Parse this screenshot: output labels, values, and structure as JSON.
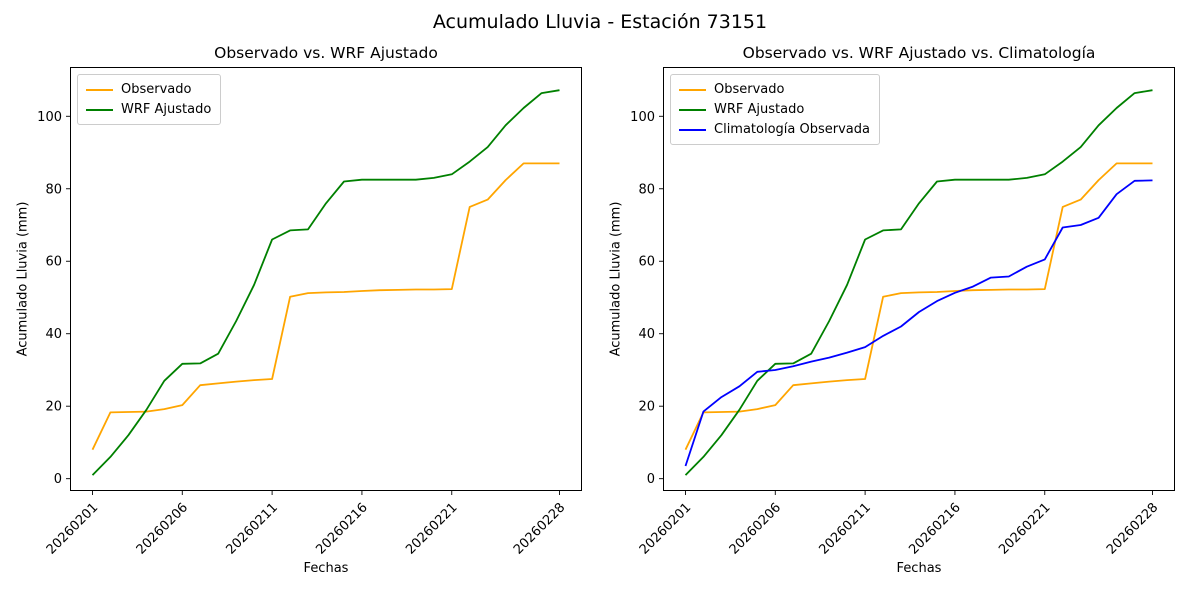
{
  "chart_data": {
    "type": "line",
    "suptitle": "Acumulado Lluvia - Estación 73151",
    "xlabel": "Fechas",
    "ylabel": "Acumulado Lluvia (mm)",
    "n_points": 27,
    "xlim": [
      -1.25,
      27.25
    ],
    "ylim": [
      -3.4,
      113.6
    ],
    "yticks": [
      0,
      20,
      40,
      60,
      80,
      100
    ],
    "xtick_positions": [
      0,
      5,
      10,
      15,
      20,
      26
    ],
    "xtick_labels": [
      "20260201",
      "20260206",
      "20260211",
      "20260216",
      "20260221",
      "20260228"
    ],
    "grid": false,
    "legend_position": "upper-left",
    "series": [
      {
        "name": "observado",
        "label": "Observado",
        "color": "#FFA500",
        "values": [
          8,
          18.3,
          18.4,
          18.5,
          19.2,
          20.3,
          25.8,
          26.3,
          26.8,
          27.2,
          27.5,
          50.2,
          51.2,
          51.4,
          51.5,
          51.8,
          52.0,
          52.1,
          52.2,
          52.2,
          52.3,
          75,
          77,
          82.4,
          87,
          87,
          87
        ]
      },
      {
        "name": "wrf",
        "label": "WRF Ajustado",
        "color": "#008000",
        "values": [
          1,
          6,
          12,
          19,
          27,
          31.7,
          31.8,
          34.5,
          43.5,
          53.5,
          66,
          68.5,
          68.8,
          76,
          82,
          82.5,
          82.5,
          82.5,
          82.5,
          83,
          84,
          87.5,
          91.5,
          97.5,
          102.3,
          106.4,
          107.2
        ]
      },
      {
        "name": "clima",
        "label": "Climatología Observada",
        "color": "#0000FF",
        "values": [
          3.5,
          18.5,
          22.5,
          25.5,
          29.5,
          30,
          31,
          32.3,
          33.4,
          34.8,
          36.3,
          39.4,
          42,
          46,
          49,
          51.3,
          53,
          55.5,
          55.8,
          58.5,
          60.5,
          69.3,
          70,
          72,
          78.5,
          82.2,
          82.3
        ]
      }
    ],
    "charts": [
      {
        "title": "Observado vs. WRF Ajustado",
        "series_names": [
          "observado",
          "wrf"
        ]
      },
      {
        "title": "Observado vs. WRF Ajustado vs. Climatología",
        "series_names": [
          "observado",
          "wrf",
          "clima"
        ]
      }
    ]
  }
}
